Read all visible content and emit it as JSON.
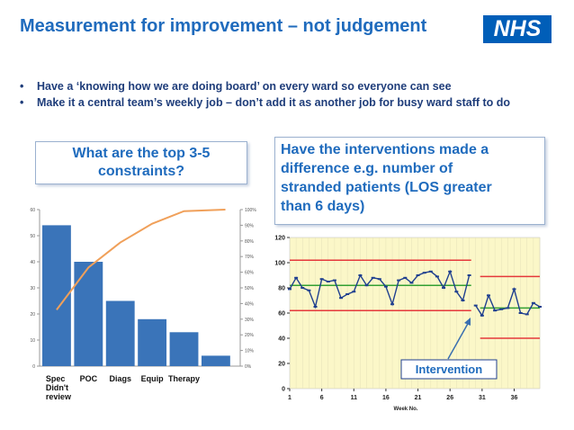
{
  "slide": {
    "title": "Measurement for improvement – not judgement",
    "logo_text": "NHS",
    "bullets": [
      "Have a ‘knowing how we are doing board’ on every ward so everyone can see",
      "Make it a central team’s weekly job – don’t add it as another job for busy ward staff to do"
    ],
    "left_box_lines": [
      "What are the top 3-5",
      "constraints?"
    ],
    "right_box_lines": [
      "Have the interventions made a",
      "difference e.g. number of",
      "stranded patients (LOS greater",
      "than 6 days)"
    ]
  },
  "chart_data": [
    {
      "type": "bar",
      "chart": "pareto",
      "categories": [
        "Spec Didn't review",
        "POC",
        "Diags",
        "Equip",
        "Therapy"
      ],
      "category_lines": [
        [
          "Spec",
          "Didn't",
          "review"
        ],
        [
          "POC"
        ],
        [
          "Diags"
        ],
        [
          "Equip"
        ],
        [
          "Therapy"
        ]
      ],
      "values": [
        54,
        40,
        25,
        18,
        13
      ],
      "extra_bar_value": 4,
      "cumulative_percent": [
        36,
        63,
        79,
        91,
        99
      ],
      "ylim": [
        0,
        60
      ],
      "y_ticks": [
        "0",
        "10",
        "20",
        "30",
        "40",
        "50",
        "60"
      ],
      "y2lim": [
        0,
        100
      ],
      "y2_ticks": [
        "0%",
        "10%",
        "20%",
        "30%",
        "40%",
        "50%",
        "60%",
        "70%",
        "80%",
        "90%",
        "100%"
      ],
      "colors": {
        "bar": "#3a74b9",
        "line": "#f0a05a"
      }
    },
    {
      "type": "line",
      "chart": "run chart",
      "xlabel": "Week No.",
      "x_ticks": [
        "1",
        "6",
        "11",
        "16",
        "21",
        "26",
        "31",
        "36"
      ],
      "y_ticks": [
        "0",
        "20",
        "40",
        "60",
        "80",
        "100",
        "120"
      ],
      "ylim": [
        0,
        120
      ],
      "xlim": [
        1,
        40
      ],
      "annotation": "Intervention",
      "series_before": {
        "x": [
          1,
          2,
          3,
          4,
          5,
          6,
          7,
          8,
          9,
          10,
          11,
          12,
          13,
          14,
          15,
          16,
          17,
          18,
          19,
          20,
          21,
          22,
          23,
          24,
          25,
          26,
          27,
          28,
          29
        ],
        "y": [
          79,
          88,
          80,
          78,
          65,
          87,
          85,
          86,
          72,
          75,
          77,
          90,
          82,
          88,
          87,
          81,
          67,
          86,
          88,
          84,
          90,
          92,
          93,
          89,
          80,
          93,
          77,
          70,
          90
        ]
      },
      "series_after": {
        "x": [
          30,
          31,
          32,
          33,
          34,
          35,
          36,
          37,
          38,
          39,
          40
        ],
        "y": [
          66,
          58,
          74,
          62,
          63,
          64,
          79,
          60,
          59,
          68,
          65
        ]
      },
      "limits_before": {
        "upper": 102,
        "mean": 82,
        "lower": 62
      },
      "limits_after": {
        "upper": 89,
        "mean": 64,
        "lower": 40
      },
      "colors": {
        "background": "#fbf7c8",
        "data": "#1f3f8f",
        "mean": "#33a033",
        "limits": "#e5383b",
        "annotation": "#1f6bbd"
      }
    }
  ]
}
